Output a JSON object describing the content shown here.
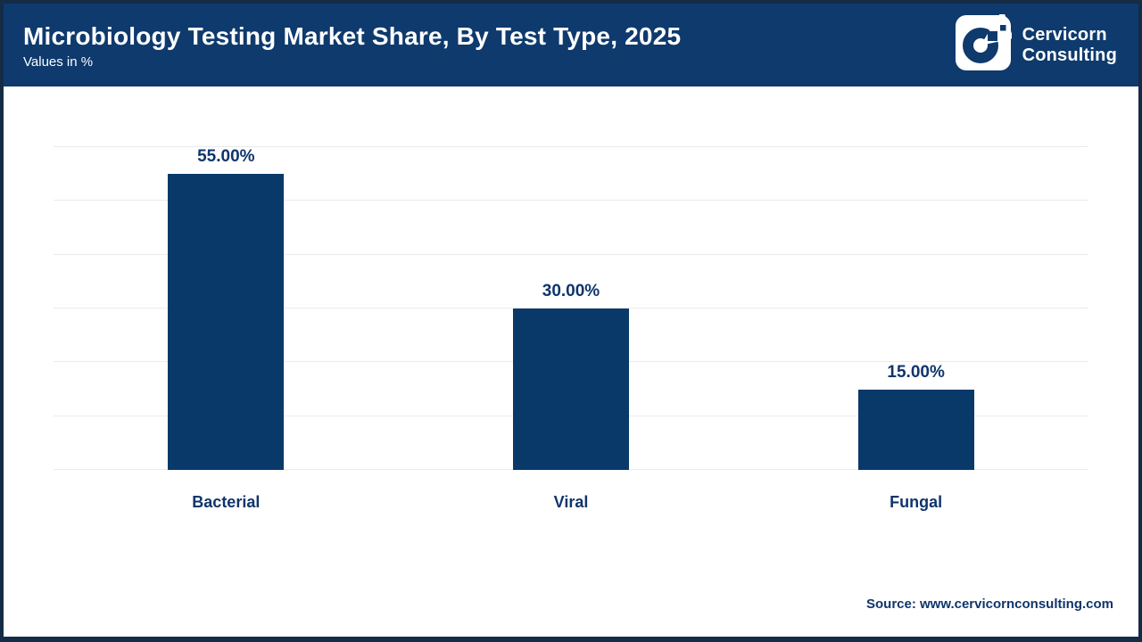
{
  "header": {
    "title": "Microbiology Testing Market Share, By Test Type, 2025",
    "subtitle": "Values in %",
    "logo": {
      "line1": "Cervicorn",
      "line2": "Consulting"
    }
  },
  "chart_data": {
    "type": "bar",
    "title": "Microbiology Testing Market Share, By Test Type, 2025",
    "subtitle": "Values in %",
    "categories": [
      "Bacterial",
      "Viral",
      "Fungal"
    ],
    "values": [
      55,
      30,
      15
    ],
    "data_labels": [
      "55.00%",
      "30.00%",
      "15.00%"
    ],
    "xlabel": "",
    "ylabel": "",
    "ylim": [
      0,
      60
    ],
    "grid_step": 10,
    "grid": "horizontal-only",
    "axis_tick_labels_visible": false,
    "legend": "none",
    "bar_color": "#083969"
  },
  "footer": {
    "source": "Source: www.cervicornconsulting.com"
  },
  "colors": {
    "header_bg": "#0e3a6d",
    "bar": "#083969",
    "frame_border": "#142c45",
    "text_navy": "#0f356b",
    "gridline": "#ebebeb",
    "header_text": "#ffffff"
  }
}
